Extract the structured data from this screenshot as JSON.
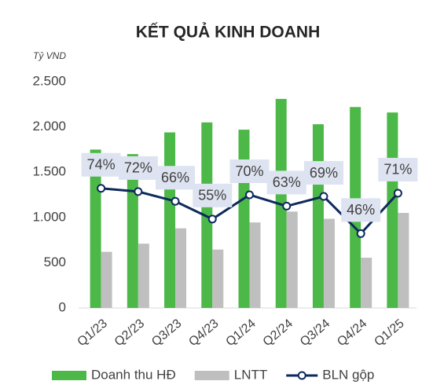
{
  "chart_data": {
    "type": "bar",
    "title": "KẾT QUẢ KINH DOANH",
    "y_label": "Tỷ VND",
    "categories": [
      "Q1/23",
      "Q2/23",
      "Q3/23",
      "Q4/23",
      "Q1/24",
      "Q2/24",
      "Q3/24",
      "Q4/24",
      "Q1/25"
    ],
    "series": [
      {
        "name": "Doanh thu HĐ",
        "color": "#4cb848",
        "values": [
          1750,
          1700,
          1940,
          2050,
          1970,
          2310,
          2030,
          2220,
          2160
        ]
      },
      {
        "name": "LNTT",
        "color": "#bfbfbf",
        "values": [
          620,
          710,
          880,
          645,
          945,
          1065,
          985,
          555,
          1050
        ]
      },
      {
        "name": "BLN gộp",
        "type": "line",
        "axis": "y2",
        "color": "#0d2a5c",
        "values": [
          74,
          72,
          66,
          55,
          70,
          63,
          69,
          46,
          71
        ],
        "value_labels": [
          "74%",
          "72%",
          "66%",
          "55%",
          "70%",
          "63%",
          "69%",
          "46%",
          "71%"
        ]
      }
    ],
    "ylim": [
      0,
      2500
    ],
    "yticks": [
      0,
      500,
      {
        "value": 1000,
        "label": "1.000"
      },
      {
        "value": 1500,
        "label": "1.500"
      },
      {
        "value": 2000,
        "label": "2.000"
      },
      {
        "value": 2500,
        "label": "2.500"
      }
    ],
    "y2lim": [
      0,
      140
    ],
    "grid": false,
    "legend": "bottom"
  }
}
